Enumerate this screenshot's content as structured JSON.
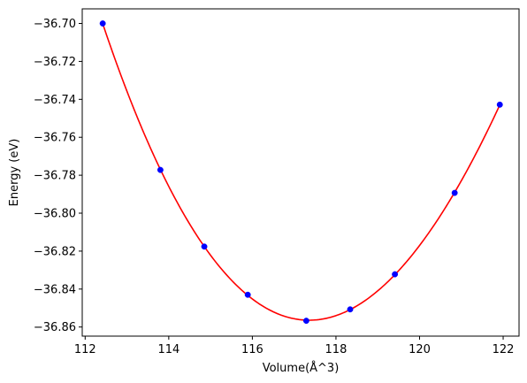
{
  "chart_data": {
    "type": "scatter",
    "title": "",
    "xlabel": "Volume(Å^3)",
    "ylabel": "Energy (eV)",
    "xlim": [
      111.93,
      122.38
    ],
    "ylim": [
      -36.8648,
      -36.6923
    ],
    "xticks": [
      112,
      114,
      116,
      118,
      120,
      122
    ],
    "xtick_labels": [
      "112",
      "114",
      "116",
      "118",
      "120",
      "122"
    ],
    "yticks": [
      -36.86,
      -36.84,
      -36.82,
      -36.8,
      -36.78,
      -36.76,
      -36.74,
      -36.72,
      -36.7
    ],
    "ytick_labels": [
      "−36.86",
      "−36.84",
      "−36.82",
      "−36.80",
      "−36.78",
      "−36.76",
      "−36.74",
      "−36.72",
      "−36.70"
    ],
    "grid": false,
    "series": [
      {
        "kind": "points",
        "color": "#0000ff",
        "x": [
          112.42,
          113.8,
          114.85,
          115.89,
          117.29,
          118.34,
          119.41,
          120.84,
          121.92
        ],
        "y": [
          -36.7,
          -36.7772,
          -36.8176,
          -36.843,
          -36.8567,
          -36.8507,
          -36.8322,
          -36.7893,
          -36.7428
        ]
      },
      {
        "kind": "fit-curve",
        "color": "#ff0000",
        "x": [
          112.42,
          113.8,
          114.85,
          115.89,
          117.29,
          118.34,
          119.41,
          120.84,
          121.92
        ],
        "y": [
          -36.7,
          -36.7772,
          -36.8176,
          -36.843,
          -36.8567,
          -36.8507,
          -36.8322,
          -36.7893,
          -36.7428
        ]
      }
    ]
  }
}
